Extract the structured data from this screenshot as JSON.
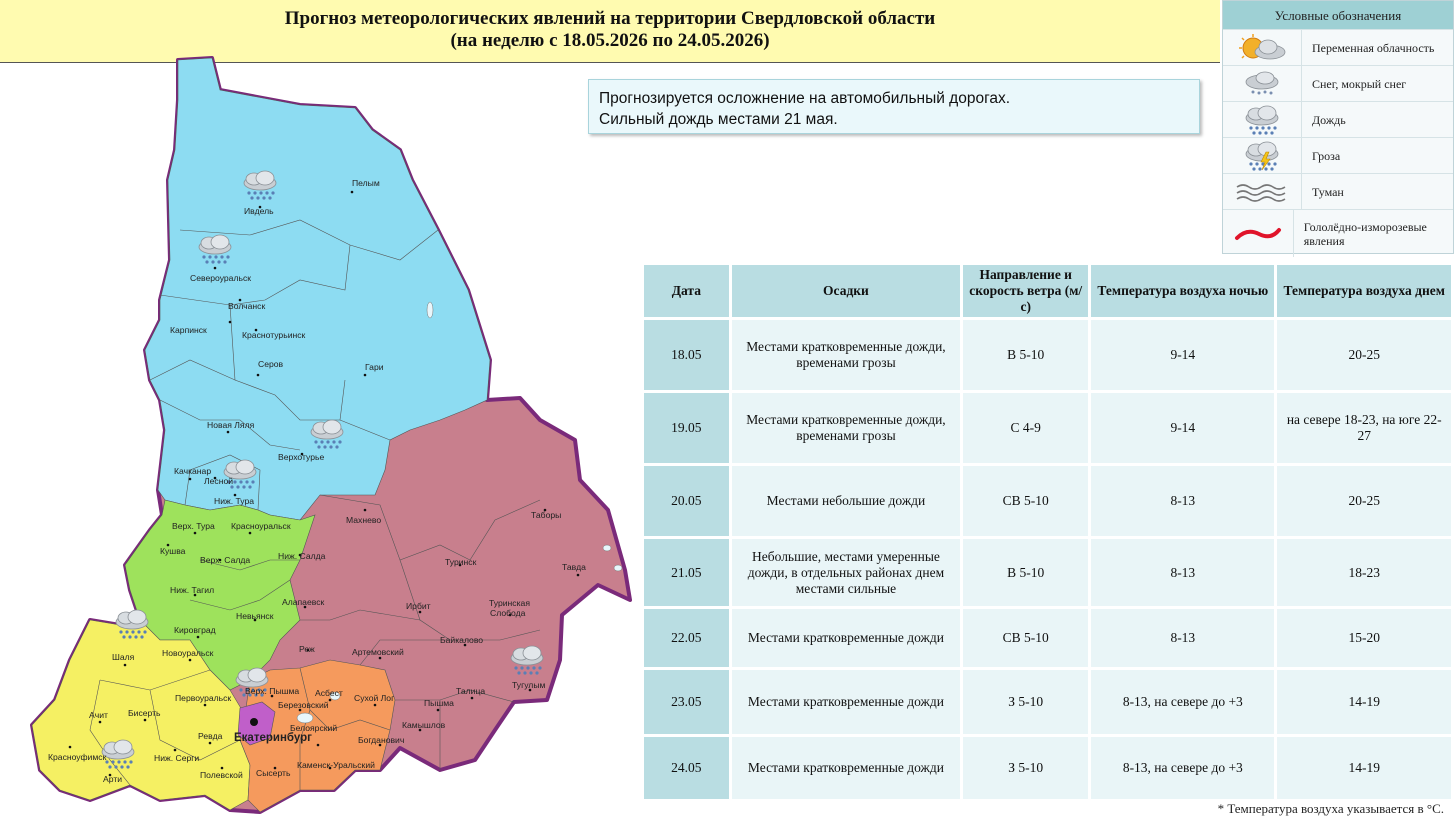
{
  "header": {
    "title_line1": "Прогноз метеорологических явлений на территории Свердловской области",
    "title_line2": "(на неделю с 18.05.2026 по 24.05.2026)"
  },
  "note": {
    "line1": "Прогнозируется осложнение на автомобильный дорогах.",
    "line2": "Сильный дождь местами 21 мая."
  },
  "legend": {
    "title": "Условные обозначения",
    "items": [
      {
        "icon": "partly-cloudy-icon",
        "label": "Переменная облачность"
      },
      {
        "icon": "snow-sleet-icon",
        "label": "Снег, мокрый снег"
      },
      {
        "icon": "rain-icon",
        "label": "Дождь"
      },
      {
        "icon": "thunderstorm-icon",
        "label": "Гроза"
      },
      {
        "icon": "fog-icon",
        "label": "Туман"
      },
      {
        "icon": "ice-icon",
        "label": "Гололёдно-изморозевые явления"
      }
    ]
  },
  "table": {
    "headers": [
      "Дата",
      "Осадки",
      "Направление и скорость ветра (м/с)",
      "Температура воздуха ночью",
      "Температура воздуха днем"
    ],
    "rows": [
      {
        "date": "18.05",
        "precip": "Местами кратковременные дожди, временами грозы",
        "wind": "В 5-10",
        "night": "9-14",
        "day": "20-25"
      },
      {
        "date": "19.05",
        "precip": "Местами кратковременные дожди, временами грозы",
        "wind": "С 4-9",
        "night": "9-14",
        "day": "на севере 18-23, на юге 22-27"
      },
      {
        "date": "20.05",
        "precip": "Местами небольшие дожди",
        "wind": "СВ 5-10",
        "night": "8-13",
        "day": "20-25"
      },
      {
        "date": "21.05",
        "precip": "Небольшие, местами умеренные дожди, в отдельных районах днем местами сильные",
        "wind": "В 5-10",
        "night": "8-13",
        "day": "18-23"
      },
      {
        "date": "22.05",
        "precip": "Местами кратковременные дожди",
        "wind": "СВ 5-10",
        "night": "8-13",
        "day": "15-20"
      },
      {
        "date": "23.05",
        "precip": "Местами кратковременные дожди",
        "wind": "З 5-10",
        "night": "8-13, на севере до +3",
        "day": "14-19"
      },
      {
        "date": "24.05",
        "precip": "Местами кратковременные дожди",
        "wind": "З 5-10",
        "night": "8-13, на севере до +3",
        "day": "14-19"
      }
    ]
  },
  "footnote": "* Температура воздуха указывается в °С.",
  "map": {
    "colors": {
      "north": "#8ddcf2",
      "west": "#9ee25c",
      "east": "#c87f8d",
      "southwest": "#f5f063",
      "south": "#f59a5d",
      "ekb": "#c05fc9",
      "border": "#7a2a7a"
    },
    "cities": [
      "Пелым",
      "Ивдель",
      "Североуральск",
      "Волчанск",
      "Карпинск",
      "Краснотурьинск",
      "Серов",
      "Гари",
      "Новая Ляля",
      "Верхотурье",
      "Качканар",
      "Лесной",
      "Ниж. Тура",
      "Верх. Тура",
      "Красноуральск",
      "Кушва",
      "Верх. Салда",
      "Ниж. Салда",
      "Махнево",
      "Таборы",
      "Туринск",
      "Тавда",
      "Ниж. Тагил",
      "Алапаевск",
      "Невьянск",
      "Ирбит",
      "Туринская",
      "Слобода",
      "Кировград",
      "Реж",
      "Байкалово",
      "Новоуральск",
      "Артемовский",
      "Шаля",
      "Верх. Пышма",
      "Асбест",
      "Сухой Лог",
      "Пышма",
      "Талица",
      "Тугулым",
      "Первоуральск",
      "Березовский",
      "Ачит",
      "Бисерть",
      "Камышлов",
      "Ревда",
      "Белоярский",
      "Богданович",
      "Красноуфимск",
      "Ниж. Серги",
      "Каменск-Уральский",
      "Арти",
      "Полевской",
      "Сысерть",
      "Екатеринбург"
    ],
    "weather_icons": [
      "rain-icon",
      "rain-icon",
      "rain-icon",
      "rain-icon",
      "rain-icon",
      "rain-icon",
      "rain-icon",
      "rain-icon"
    ]
  }
}
